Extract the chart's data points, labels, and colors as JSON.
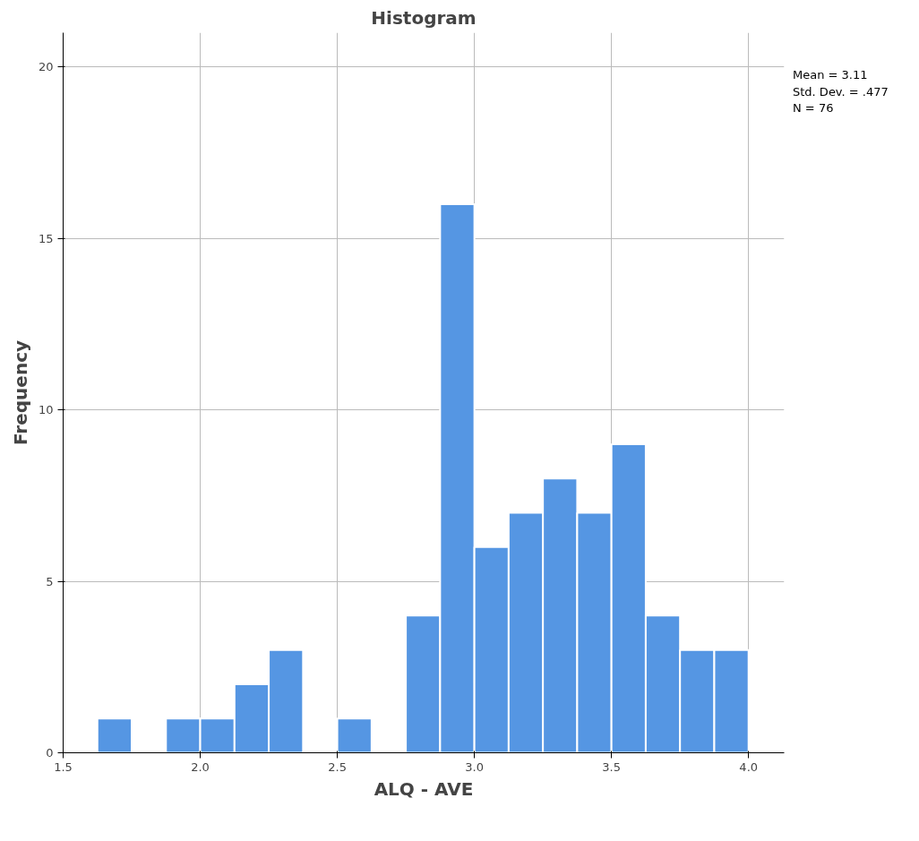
{
  "chart_data": {
    "type": "histogram",
    "title": "Histogram",
    "xlabel": "ALQ - AVE",
    "ylabel": "Frequency",
    "bins": [
      1.625,
      1.75,
      1.875,
      2.0,
      2.125,
      2.25,
      2.375,
      2.5,
      2.625,
      2.75,
      2.875,
      3.0,
      3.125,
      3.25,
      3.375,
      3.5,
      3.625,
      3.75,
      3.875,
      4.0
    ],
    "values": [
      1,
      0,
      1,
      1,
      2,
      3,
      0,
      1,
      0,
      4,
      16,
      6,
      7,
      8,
      7,
      9,
      4,
      3,
      3
    ],
    "color": "#5596e3",
    "xlim": [
      1.5,
      4.13
    ],
    "ylim": [
      0,
      21
    ],
    "xticks": [
      {
        "value": 1.5,
        "label": "1.5"
      },
      {
        "value": 2.0,
        "label": "2.0"
      },
      {
        "value": 2.5,
        "label": "2.5"
      },
      {
        "value": 3.0,
        "label": "3.0"
      },
      {
        "value": 3.5,
        "label": "3.5"
      },
      {
        "value": 4.0,
        "label": "4.0"
      }
    ],
    "yticks": [
      0,
      5,
      10,
      15,
      20
    ],
    "grid": true,
    "annotations": [
      "Mean = 3.11",
      "Std. Dev. = .477",
      "N = 76"
    ]
  }
}
